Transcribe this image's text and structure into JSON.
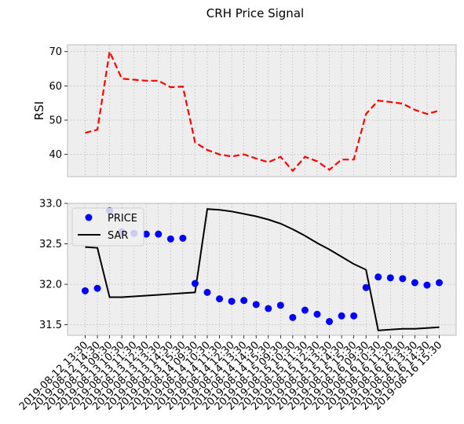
{
  "chart_data": [
    {
      "type": "line",
      "title": "CRH Price Signal",
      "ylabel": "RSI",
      "xlabel": "",
      "ylim": [
        33.5,
        72
      ],
      "yticks": [
        40,
        50,
        60,
        70
      ],
      "grid": true,
      "line_color": "#ff0000",
      "line_style": "dashed",
      "series": [
        {
          "name": "",
          "values": [
            46.3,
            47.2,
            70.0,
            62.1,
            61.8,
            61.5,
            61.5,
            59.6,
            59.8,
            43.5,
            41.3,
            40.0,
            39.4,
            40.0,
            38.8,
            37.7,
            39.3,
            35.2,
            39.3,
            38.0,
            35.5,
            38.5,
            38.5,
            51.8,
            55.7,
            55.3,
            54.8,
            53.0,
            51.8,
            52.8
          ]
        }
      ]
    },
    {
      "type": "scatter",
      "xlabel": "",
      "ylabel": "",
      "ylim": [
        31.37,
        33.0
      ],
      "yticks": [
        31.5,
        32.0,
        32.5,
        33.0
      ],
      "grid": true,
      "legend": "top-left",
      "categories": [
        "2019-08-12 13:30",
        "2019-08-12 14:30",
        "2019-08-13 09:30",
        "2019-08-13 10:30",
        "2019-08-13 11:30",
        "2019-08-13 12:30",
        "2019-08-13 13:30",
        "2019-08-13 14:30",
        "2019-08-13 15:30",
        "2019-08-14 09:30",
        "2019-08-14 10:30",
        "2019-08-14 11:30",
        "2019-08-14 12:30",
        "2019-08-14 13:30",
        "2019-08-14 14:30",
        "2019-08-14 15:30",
        "2019-08-15 09:30",
        "2019-08-15 10:30",
        "2019-08-15 11:30",
        "2019-08-15 12:30",
        "2019-08-15 13:30",
        "2019-08-15 14:30",
        "2019-08-15 15:30",
        "2019-08-16 09:30",
        "2019-08-16 10:30",
        "2019-08-16 11:30",
        "2019-08-16 12:30",
        "2019-08-16 13:30",
        "2019-08-16 14:30",
        "2019-08-16 15:30"
      ],
      "series": [
        {
          "name": "PRICE",
          "kind": "scatter",
          "color": "#0000ff",
          "values": [
            31.92,
            31.95,
            32.91,
            32.65,
            32.63,
            32.62,
            32.62,
            32.56,
            32.57,
            32.01,
            31.9,
            31.82,
            31.79,
            31.8,
            31.75,
            31.7,
            31.74,
            31.59,
            31.68,
            31.63,
            31.54,
            31.61,
            31.61,
            31.96,
            32.09,
            32.08,
            32.07,
            32.02,
            31.99,
            32.02
          ]
        },
        {
          "name": "SAR",
          "kind": "line",
          "color": "#000000",
          "values": [
            32.46,
            32.45,
            31.84,
            31.84,
            31.85,
            31.86,
            31.87,
            31.88,
            31.89,
            31.9,
            32.93,
            32.92,
            32.9,
            32.87,
            32.84,
            32.8,
            32.75,
            32.68,
            32.6,
            32.51,
            32.43,
            32.34,
            32.25,
            32.18,
            31.43,
            31.44,
            31.45,
            31.45,
            31.46,
            31.47
          ]
        }
      ]
    }
  ]
}
